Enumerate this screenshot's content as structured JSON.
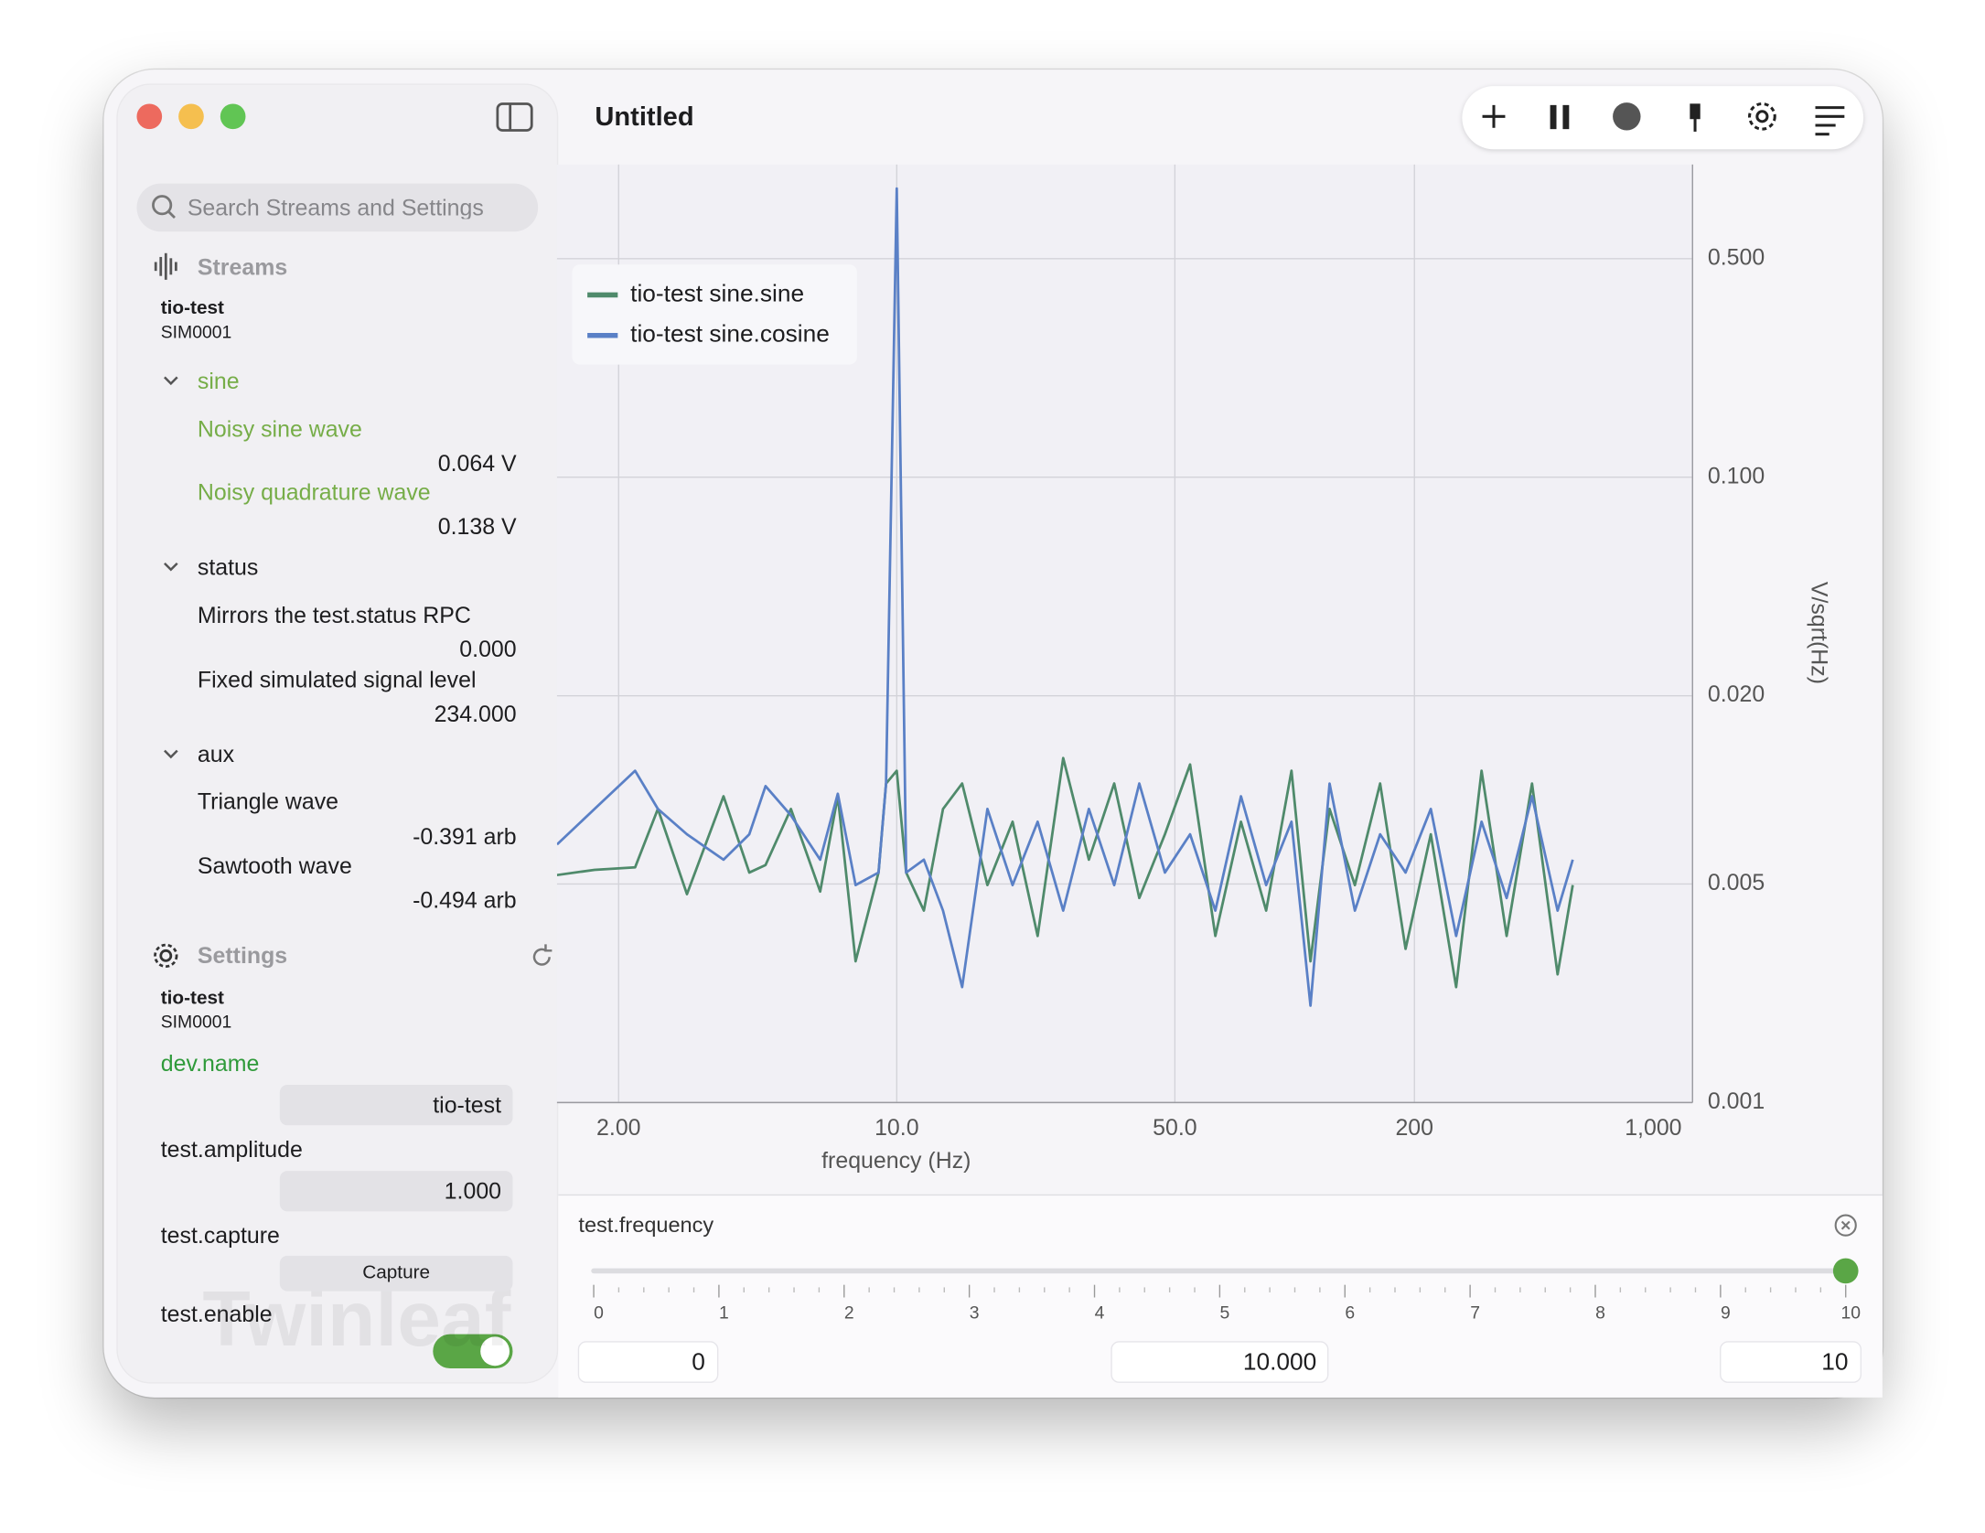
{
  "window": {
    "title": "Untitled"
  },
  "sidebar": {
    "search_placeholder": "Search Streams and Settings",
    "streams": {
      "heading": "Streams",
      "device": "tio-test",
      "serial": "SIM0001",
      "groups": [
        {
          "name": "sine",
          "items": [
            {
              "label": "Noisy sine wave",
              "value": "0.064 V"
            },
            {
              "label": "Noisy quadrature wave",
              "value": "0.138 V"
            }
          ]
        },
        {
          "name": "status",
          "items": [
            {
              "label": "Mirrors the test.status RPC",
              "value": "0.000"
            },
            {
              "label": "Fixed simulated signal level",
              "value": "234.000"
            }
          ]
        },
        {
          "name": "aux",
          "items": [
            {
              "label": "Triangle wave",
              "value": "-0.391 arb"
            },
            {
              "label": "Sawtooth wave",
              "value": "-0.494 arb"
            }
          ]
        }
      ]
    },
    "settings": {
      "heading": "Settings",
      "device": "tio-test",
      "serial": "SIM0001",
      "items": [
        {
          "name": "dev.name",
          "value": "tio-test"
        },
        {
          "name": "test.amplitude",
          "value": "1.000"
        },
        {
          "name": "test.capture",
          "button": "Capture"
        },
        {
          "name": "test.enable",
          "enabled": true
        }
      ]
    },
    "watermark": "Twinleaf"
  },
  "chart_data": {
    "type": "line",
    "xlabel": "frequency (Hz)",
    "ylabel": "V/sqrt(Hz)",
    "xscale": "log",
    "yscale": "log",
    "grid": true,
    "legend": "upper left",
    "xlim": [
      1.4,
      1000
    ],
    "ylim": [
      0.001,
      1.0
    ],
    "xticks": [
      {
        "value": 2,
        "label": "2.00"
      },
      {
        "value": 10,
        "label": "10.0"
      },
      {
        "value": 50,
        "label": "50.0"
      },
      200,
      {
        "value": 1000,
        "label": "1,000"
      }
    ],
    "yticks": [
      {
        "value": 0.5,
        "label": "0.500"
      },
      {
        "value": 0.1,
        "label": "0.100"
      },
      {
        "value": 0.02,
        "label": "0.020"
      },
      {
        "value": 0.005,
        "label": "0.005"
      },
      {
        "value": 0.001,
        "label": "0.001"
      }
    ],
    "x": [
      1.4,
      1.74,
      2.2,
      2.51,
      2.97,
      3.67,
      4.26,
      4.68,
      5.42,
      6.42,
      7.11,
      7.88,
      9.0,
      9.4,
      10.0,
      10.56,
      11.7,
      13.07,
      14.6,
      16.9,
      19.55,
      22.6,
      26.2,
      30.4,
      35.2,
      40.7,
      47.2,
      54.6,
      63.2,
      73.3,
      84.8,
      98.2,
      109.6,
      122.4,
      141.7,
      164,
      190,
      219.9,
      254.6,
      295,
      341,
      395,
      458,
      500
    ],
    "series": [
      {
        "name": "tio-test sine.sine",
        "color": "#4f8a6b",
        "values": [
          0.00534,
          0.00555,
          0.00565,
          0.00869,
          0.00464,
          0.00954,
          0.00544,
          0.00575,
          0.00869,
          0.00473,
          0.00954,
          0.00283,
          0.00544,
          0.01048,
          0.01151,
          0.00544,
          0.00411,
          0.00869,
          0.01048,
          0.00496,
          0.00791,
          0.00341,
          0.01264,
          0.00598,
          0.01048,
          0.00451,
          0.00721,
          0.01206,
          0.00341,
          0.00791,
          0.00411,
          0.01151,
          0.00283,
          0.00869,
          0.00496,
          0.01048,
          0.0031,
          0.00721,
          0.00234,
          0.01151,
          0.00341,
          0.01048,
          0.00257,
          0.00496
        ]
      },
      {
        "name": "tio-test sine.cosine",
        "color": "#5a80c6",
        "values": [
          0.00669,
          0.00869,
          0.01151,
          0.00869,
          0.00721,
          0.00598,
          0.00721,
          0.01028,
          0.00829,
          0.00598,
          0.00972,
          0.00496,
          0.00544,
          0.01048,
          0.838,
          0.00544,
          0.00598,
          0.00411,
          0.00234,
          0.00869,
          0.00496,
          0.00791,
          0.00411,
          0.00869,
          0.00496,
          0.01048,
          0.00544,
          0.00721,
          0.00411,
          0.00954,
          0.00496,
          0.00791,
          0.00204,
          0.01048,
          0.00411,
          0.00721,
          0.00544,
          0.00869,
          0.00341,
          0.00791,
          0.00451,
          0.00954,
          0.00411,
          0.00598
        ]
      }
    ]
  },
  "slider": {
    "label": "test.frequency",
    "ticks": [
      0,
      1,
      2,
      3,
      4,
      5,
      6,
      7,
      8,
      9,
      10
    ],
    "min_input": "0",
    "value_input": "10.000",
    "max_input": "10"
  }
}
